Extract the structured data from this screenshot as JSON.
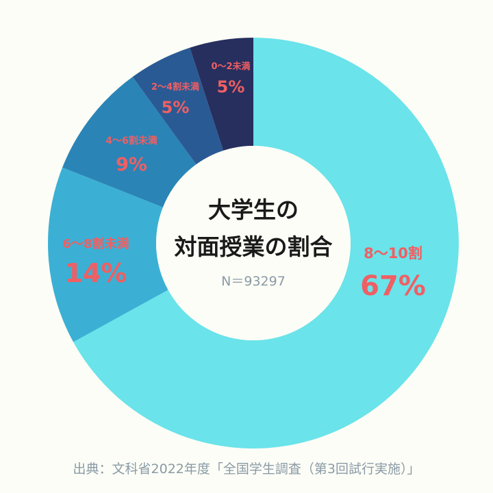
{
  "chart_data": {
    "type": "pie",
    "title_line1": "大学生の",
    "title_line2": "対面授業の割合",
    "sample_size": "N＝93297",
    "categories": [
      "8〜10割",
      "6〜8割未満",
      "4〜6割未満",
      "2〜4割未満",
      "0〜2未満"
    ],
    "values": [
      67,
      14,
      9,
      5,
      5
    ],
    "value_labels": [
      "67%",
      "14%",
      "9%",
      "5%",
      "5%"
    ],
    "unit": "%",
    "colors": [
      "#6ae3ea",
      "#3bb0d4",
      "#2a84b6",
      "#2a5a94",
      "#262f5e"
    ],
    "label_color": "#ef5f63"
  },
  "source": "出典：文科省2022年度「全国学生調査（第3回試行実施）」"
}
